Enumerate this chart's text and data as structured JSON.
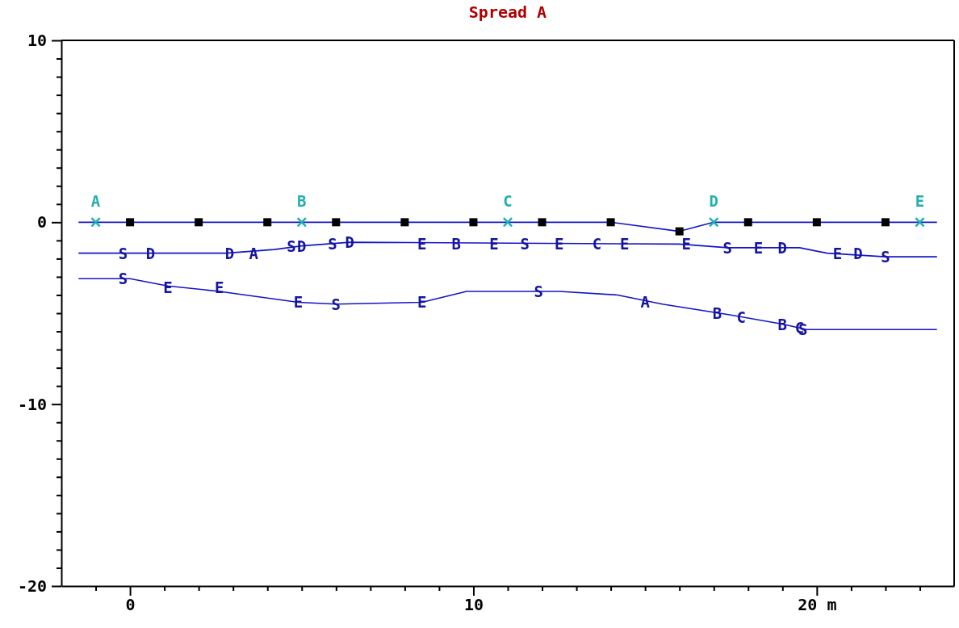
{
  "chart_data": {
    "type": "line",
    "title": "Spread A",
    "xlim": [
      -2,
      24
    ],
    "ylim": [
      -20,
      10
    ],
    "xticks": [
      {
        "value": -1,
        "label": null
      },
      0,
      {
        "value": 1,
        "label": null
      },
      {
        "value": 2,
        "label": null
      },
      {
        "value": 3,
        "label": null
      },
      {
        "value": 4,
        "label": null
      },
      {
        "value": 5,
        "label": null
      },
      {
        "value": 6,
        "label": null
      },
      {
        "value": 7,
        "label": null
      },
      {
        "value": 8,
        "label": null
      },
      {
        "value": 9,
        "label": null
      },
      10,
      {
        "value": 11,
        "label": null
      },
      {
        "value": 12,
        "label": null
      },
      {
        "value": 13,
        "label": null
      },
      {
        "value": 14,
        "label": null
      },
      {
        "value": 15,
        "label": null
      },
      {
        "value": 16,
        "label": null
      },
      {
        "value": 17,
        "label": null
      },
      {
        "value": 18,
        "label": null
      },
      {
        "value": 19,
        "label": null
      },
      {
        "value": 20,
        "label": "20 m"
      },
      {
        "value": 21,
        "label": null
      },
      {
        "value": 22,
        "label": null
      },
      {
        "value": 23,
        "label": null
      }
    ],
    "yticks": [
      -20,
      {
        "value": -19,
        "label": null
      },
      {
        "value": -18,
        "label": null
      },
      {
        "value": -17,
        "label": null
      },
      {
        "value": -16,
        "label": null
      },
      {
        "value": -15,
        "label": null
      },
      {
        "value": -14,
        "label": null
      },
      {
        "value": -13,
        "label": null
      },
      {
        "value": -12,
        "label": null
      },
      {
        "value": -11,
        "label": null
      },
      -10,
      {
        "value": -9,
        "label": null
      },
      {
        "value": -8,
        "label": null
      },
      {
        "value": -7,
        "label": null
      },
      {
        "value": -6,
        "label": null
      },
      {
        "value": -5,
        "label": null
      },
      {
        "value": -4,
        "label": null
      },
      {
        "value": -3,
        "label": null
      },
      {
        "value": -2,
        "label": null
      },
      {
        "value": -1,
        "label": null
      },
      0,
      {
        "value": 1,
        "label": null
      },
      {
        "value": 2,
        "label": null
      },
      {
        "value": 3,
        "label": null
      },
      {
        "value": 4,
        "label": null
      },
      {
        "value": 5,
        "label": null
      },
      {
        "value": 6,
        "label": null
      },
      {
        "value": 7,
        "label": null
      },
      {
        "value": 8,
        "label": null
      },
      {
        "value": 9,
        "label": null
      },
      10
    ],
    "grid": false,
    "legend": false,
    "series": [
      {
        "type": "line",
        "color": "#1414c8",
        "marker": "none",
        "x": [
          -1.5,
          14,
          16,
          17,
          23.5
        ],
        "values": [
          0,
          0,
          -0.5,
          0,
          0
        ]
      },
      {
        "type": "line",
        "color": "#1414c8",
        "marker": "none",
        "x": [
          -1.5,
          2.8,
          4.2,
          5,
          6.4,
          16,
          17.4,
          19.5,
          20.3,
          22,
          23.5
        ],
        "values": [
          -1.7,
          -1.7,
          -1.5,
          -1.3,
          -1.1,
          -1.2,
          -1.4,
          -1.4,
          -1.7,
          -1.9,
          -1.9
        ]
      },
      {
        "type": "line",
        "color": "#1414c8",
        "marker": "none",
        "x": [
          -1.5,
          0,
          1.1,
          2.6,
          4.9,
          6,
          8.5,
          9.8,
          12.5,
          14.2,
          15.5,
          17.5,
          19,
          19.7,
          23.5
        ],
        "values": [
          -3.1,
          -3.1,
          -3.5,
          -3.8,
          -4.4,
          -4.5,
          -4.4,
          -3.8,
          -3.8,
          -4,
          -4.5,
          -5.1,
          -5.6,
          -5.9,
          -5.9
        ]
      },
      {
        "type": "scatter",
        "color": "#000000",
        "marker": "square",
        "x": [
          0,
          2,
          4,
          6,
          8,
          10,
          12,
          14,
          16,
          18,
          20,
          22
        ],
        "values": [
          0,
          0,
          0,
          0,
          0,
          0,
          0,
          0,
          -0.5,
          0,
          0,
          0
        ]
      },
      {
        "type": "scatter",
        "color": "#20b0b0",
        "marker": "cross",
        "x": [
          -1,
          5,
          11,
          17,
          23
        ],
        "values": [
          0,
          0,
          0,
          0,
          0
        ],
        "value_labels": [
          "A",
          "B",
          "C",
          "D",
          "E"
        ]
      }
    ],
    "annotations": [
      {
        "text": "S",
        "x": -0.2,
        "y": -1.7
      },
      {
        "text": "S",
        "x": 4.7,
        "y": -1.3
      },
      {
        "text": "S",
        "x": 5.9,
        "y": -1.2
      },
      {
        "text": "S",
        "x": 11.5,
        "y": -1.2
      },
      {
        "text": "S",
        "x": 17.4,
        "y": -1.4
      },
      {
        "text": "S",
        "x": 22,
        "y": -1.9
      },
      {
        "text": "S",
        "x": -0.2,
        "y": -3.1
      },
      {
        "text": "S",
        "x": 6,
        "y": -4.5
      },
      {
        "text": "S",
        "x": 11.9,
        "y": -3.8
      },
      {
        "text": "S",
        "x": 19.6,
        "y": -5.9
      },
      {
        "text": "D",
        "x": 0.6,
        "y": -1.7
      },
      {
        "text": "D",
        "x": 2.9,
        "y": -1.7
      },
      {
        "text": "A",
        "x": 3.6,
        "y": -1.7
      },
      {
        "text": "D",
        "x": 5,
        "y": -1.3
      },
      {
        "text": "D",
        "x": 6.4,
        "y": -1.1
      },
      {
        "text": "E",
        "x": 8.5,
        "y": -1.2
      },
      {
        "text": "B",
        "x": 9.5,
        "y": -1.2
      },
      {
        "text": "E",
        "x": 10.6,
        "y": -1.2
      },
      {
        "text": "E",
        "x": 12.5,
        "y": -1.2
      },
      {
        "text": "C",
        "x": 13.6,
        "y": -1.2
      },
      {
        "text": "E",
        "x": 14.4,
        "y": -1.2
      },
      {
        "text": "E",
        "x": 16.2,
        "y": -1.2
      },
      {
        "text": "E",
        "x": 18.3,
        "y": -1.4
      },
      {
        "text": "D",
        "x": 19,
        "y": -1.4
      },
      {
        "text": "E",
        "x": 20.6,
        "y": -1.7
      },
      {
        "text": "D",
        "x": 21.2,
        "y": -1.7
      },
      {
        "text": "E",
        "x": 1.1,
        "y": -3.6
      },
      {
        "text": "E",
        "x": 2.6,
        "y": -3.6
      },
      {
        "text": "E",
        "x": 4.9,
        "y": -4.4
      },
      {
        "text": "E",
        "x": 8.5,
        "y": -4.4
      },
      {
        "text": "A",
        "x": 15,
        "y": -4.4
      },
      {
        "text": "B",
        "x": 17.1,
        "y": -5
      },
      {
        "text": "C",
        "x": 17.8,
        "y": -5.2
      },
      {
        "text": "B",
        "x": 19,
        "y": -5.6
      },
      {
        "text": "C",
        "x": 19.5,
        "y": -5.8
      }
    ]
  }
}
